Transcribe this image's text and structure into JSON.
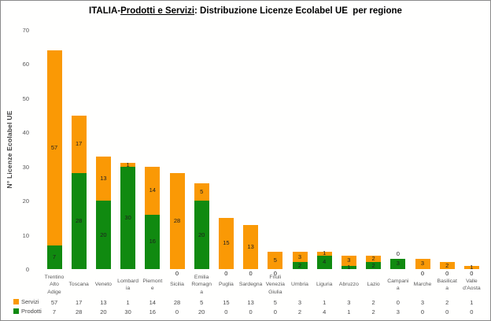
{
  "title": {
    "prefix": "ITALIA-",
    "underlined": "Prodotti e Servizi",
    "suffix": ": Distribuzione Licenze Ecolabel UE  per regione"
  },
  "y_axis": {
    "title": "N° Licenze Ecolabel UE",
    "ticks": [
      0,
      10,
      20,
      30,
      40,
      50,
      60,
      70
    ],
    "max": 70
  },
  "x_axis": {
    "tick_labels": [
      "Trentino\nAlto\nAdige",
      "Toscana",
      "Veneto",
      "Lombard\nia",
      "Piemont\ne",
      "Sicilia",
      "Emilia\nRomagn\na",
      "Puglia",
      "Sardegna",
      "Friuli\nVenezia\nGiulia",
      "Umbria",
      "Liguria",
      "Abruzzo",
      "Lazio",
      "Campani\na",
      "Marche",
      "Basilicat\na",
      "Valle\nd'Aosta"
    ]
  },
  "chart_data": {
    "type": "bar",
    "stacked": true,
    "grid": false,
    "legend_position": "bottom-left",
    "data_table": true,
    "title": "ITALIA-Prodotti e Servizi: Distribuzione Licenze Ecolabel UE per regione",
    "xlabel": "",
    "ylabel": "N° Licenze Ecolabel UE",
    "ylim": [
      0,
      70
    ],
    "categories": [
      "Trentino Alto Adige",
      "Toscana",
      "Veneto",
      "Lombardia",
      "Piemonte",
      "Sicilia",
      "Emilia Romagna",
      "Puglia",
      "Sardegna",
      "Friuli Venezia Giulia",
      "Umbria",
      "Liguria",
      "Abruzzo",
      "Lazio",
      "Campania",
      "Marche",
      "Basilicata",
      "Valle d'Aosta"
    ],
    "series": [
      {
        "name": "Servizi",
        "color": "#FA9905",
        "values": [
          57,
          17,
          13,
          1,
          14,
          28,
          5,
          15,
          13,
          5,
          3,
          1,
          3,
          2,
          0,
          3,
          2,
          1
        ]
      },
      {
        "name": "Prodotti",
        "color": "#108A10",
        "values": [
          7,
          28,
          20,
          30,
          16,
          0,
          20,
          0,
          0,
          0,
          2,
          4,
          1,
          2,
          3,
          0,
          0,
          0
        ]
      }
    ]
  }
}
